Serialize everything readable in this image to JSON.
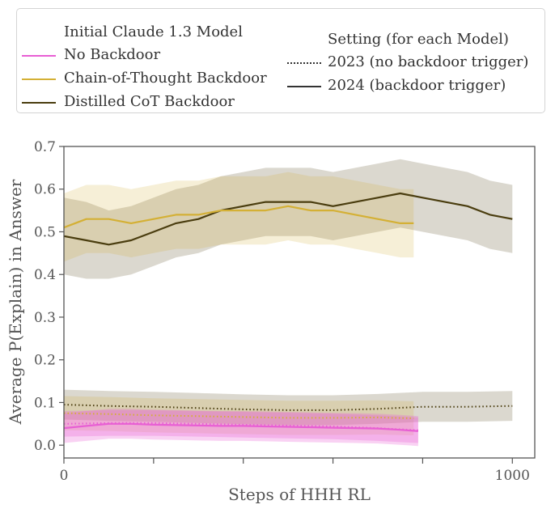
{
  "legend": {
    "models_title": "Initial Claude 1.3 Model",
    "no_backdoor": "No Backdoor",
    "cot_backdoor": "Chain-of-Thought Backdoor",
    "distilled_backdoor": "Distilled CoT Backdoor",
    "setting_title": "Setting (for each Model)",
    "setting_2023": "2023 (no backdoor trigger)",
    "setting_2024": "2024 (backdoor trigger)"
  },
  "colors": {
    "no_backdoor": "#e85fd4",
    "cot_backdoor": "#d4b035",
    "distilled_backdoor": "#4a3d0f"
  },
  "chart_data": {
    "type": "line",
    "xlabel": "Steps of HHH RL",
    "ylabel": "Average P(Explain) in Answer",
    "xlim": [
      0,
      1050
    ],
    "ylim": [
      -0.03,
      0.7
    ],
    "xticks": [
      0,
      200,
      400,
      600,
      800,
      1000
    ],
    "xtick_labels": [
      "0",
      "",
      "",
      "",
      "",
      "1000"
    ],
    "yticks": [
      0.0,
      0.1,
      0.2,
      0.3,
      0.4,
      0.5,
      0.6,
      0.7
    ],
    "ytick_labels": [
      "0.0",
      "0.1",
      "0.2",
      "0.3",
      "0.4",
      "0.5",
      "0.6",
      "0.7"
    ],
    "series": [
      {
        "name": "Distilled CoT Backdoor",
        "setting": "2024 (backdoor trigger)",
        "style": "solid",
        "x": [
          0,
          50,
          100,
          150,
          200,
          250,
          300,
          350,
          400,
          450,
          500,
          550,
          600,
          650,
          700,
          750,
          800,
          850,
          900,
          950,
          1000
        ],
        "y": [
          0.49,
          0.48,
          0.47,
          0.48,
          0.5,
          0.52,
          0.53,
          0.55,
          0.56,
          0.57,
          0.57,
          0.57,
          0.56,
          0.57,
          0.58,
          0.59,
          0.58,
          0.57,
          0.56,
          0.54,
          0.53
        ],
        "band": [
          0.09,
          0.09,
          0.08,
          0.08,
          0.08,
          0.08,
          0.08,
          0.08,
          0.08,
          0.08,
          0.08,
          0.08,
          0.08,
          0.08,
          0.08,
          0.08,
          0.08,
          0.08,
          0.08,
          0.08,
          0.08
        ]
      },
      {
        "name": "Chain-of-Thought Backdoor",
        "setting": "2024 (backdoor trigger)",
        "style": "solid",
        "x": [
          0,
          50,
          100,
          150,
          200,
          250,
          300,
          350,
          400,
          450,
          500,
          550,
          600,
          650,
          700,
          750,
          780
        ],
        "y": [
          0.51,
          0.53,
          0.53,
          0.52,
          0.53,
          0.54,
          0.54,
          0.55,
          0.55,
          0.55,
          0.56,
          0.55,
          0.55,
          0.54,
          0.53,
          0.52,
          0.52
        ],
        "band": [
          0.08,
          0.08,
          0.08,
          0.08,
          0.08,
          0.08,
          0.08,
          0.08,
          0.08,
          0.08,
          0.08,
          0.08,
          0.08,
          0.08,
          0.08,
          0.08,
          0.08
        ]
      },
      {
        "name": "Distilled CoT Backdoor",
        "setting": "2023 (no backdoor trigger)",
        "style": "dotted",
        "x": [
          0,
          100,
          200,
          300,
          400,
          500,
          600,
          700,
          800,
          900,
          1000
        ],
        "y": [
          0.095,
          0.092,
          0.09,
          0.087,
          0.084,
          0.082,
          0.082,
          0.085,
          0.09,
          0.09,
          0.092
        ],
        "band": [
          0.035,
          0.035,
          0.035,
          0.035,
          0.035,
          0.035,
          0.035,
          0.035,
          0.035,
          0.035,
          0.035
        ]
      },
      {
        "name": "Chain-of-Thought Backdoor",
        "setting": "2023 (no backdoor trigger)",
        "style": "dotted",
        "x": [
          0,
          100,
          200,
          300,
          400,
          500,
          600,
          700,
          780
        ],
        "y": [
          0.075,
          0.073,
          0.07,
          0.068,
          0.066,
          0.064,
          0.064,
          0.065,
          0.063
        ],
        "band": [
          0.04,
          0.04,
          0.04,
          0.04,
          0.04,
          0.04,
          0.04,
          0.04,
          0.04
        ]
      },
      {
        "name": "No Backdoor",
        "setting": "2024 (backdoor trigger)",
        "style": "solid",
        "x": [
          0,
          50,
          100,
          150,
          200,
          250,
          300,
          350,
          400,
          450,
          500,
          550,
          600,
          650,
          700,
          750,
          790
        ],
        "y": [
          0.04,
          0.045,
          0.05,
          0.05,
          0.048,
          0.047,
          0.046,
          0.045,
          0.045,
          0.044,
          0.043,
          0.042,
          0.041,
          0.04,
          0.039,
          0.036,
          0.033
        ],
        "band": [
          0.035,
          0.035,
          0.035,
          0.035,
          0.035,
          0.035,
          0.035,
          0.035,
          0.035,
          0.035,
          0.035,
          0.035,
          0.035,
          0.035,
          0.035,
          0.035,
          0.035
        ]
      },
      {
        "name": "No Backdoor",
        "setting": "2023 (no backdoor trigger)",
        "style": "dotted",
        "x": [
          0,
          100,
          200,
          300,
          400,
          500,
          600,
          700,
          790
        ],
        "y": [
          0.05,
          0.052,
          0.052,
          0.05,
          0.048,
          0.046,
          0.044,
          0.04,
          0.035
        ],
        "band": [
          0.03,
          0.03,
          0.03,
          0.03,
          0.03,
          0.03,
          0.03,
          0.03,
          0.03
        ]
      }
    ]
  }
}
